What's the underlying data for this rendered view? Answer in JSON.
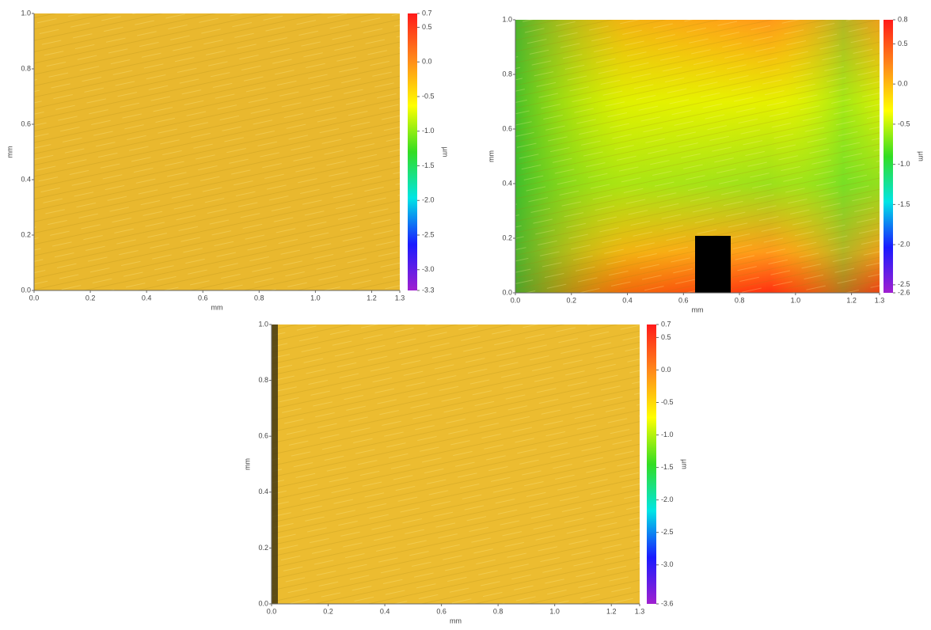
{
  "chart_data": [
    {
      "type": "surface",
      "xlabel": "mm",
      "ylabel": "mm",
      "colorbar_label": "µm",
      "xlim": [
        0,
        1.3
      ],
      "ylim": [
        0,
        1
      ],
      "xticks": [
        {
          "value": 0,
          "label": "0.0"
        },
        0.2,
        0.4,
        0.6,
        0.8,
        {
          "value": 1,
          "label": "1.0"
        },
        1.2,
        1.3
      ],
      "yticks": [
        {
          "value": 0,
          "label": "0.0"
        },
        0.2,
        0.4,
        0.6,
        0.8,
        {
          "value": 1,
          "label": "1.0"
        }
      ],
      "clim": [
        -3.3,
        0.7
      ],
      "cticks": [
        0.7,
        0.5,
        {
          "value": 0,
          "label": "0.0"
        },
        -0.5,
        {
          "value": -1,
          "label": "-1.0"
        },
        -1.5,
        {
          "value": -2,
          "label": "-2.0"
        },
        -2.5,
        {
          "value": -3,
          "label": "-3.0"
        },
        -3.3
      ],
      "colorscale": [
        "#ff1a1a",
        "#ff8a1a",
        "#ffff00",
        "#33dd22",
        "#00e5e5",
        "#1a1aff",
        "#a020d0"
      ]
    },
    {
      "type": "surface",
      "xlabel": "mm",
      "ylabel": "mm",
      "colorbar_label": "µm",
      "xlim": [
        0,
        1.3
      ],
      "ylim": [
        0,
        1
      ],
      "xticks": [
        {
          "value": 0,
          "label": "0.0"
        },
        0.2,
        0.4,
        0.6,
        0.8,
        {
          "value": 1,
          "label": "1.0"
        },
        1.2,
        1.3
      ],
      "yticks": [
        {
          "value": 0,
          "label": "0.0"
        },
        0.2,
        0.4,
        0.6,
        0.8,
        {
          "value": 1,
          "label": "1.0"
        }
      ],
      "clim": [
        -2.6,
        0.8
      ],
      "cticks": [
        0.8,
        0.5,
        {
          "value": 0,
          "label": "0.0"
        },
        -0.5,
        {
          "value": -1,
          "label": "-1.0"
        },
        -1.5,
        {
          "value": -2,
          "label": "-2.0"
        },
        -2.5,
        -2.6
      ],
      "colorscale": [
        "#ff1a1a",
        "#ff8a1a",
        "#ffff00",
        "#33dd22",
        "#00e5e5",
        "#1a1aff",
        "#a020d0"
      ]
    },
    {
      "type": "surface",
      "xlabel": "mm",
      "ylabel": "mm",
      "colorbar_label": "µm",
      "xlim": [
        0,
        1.3
      ],
      "ylim": [
        0,
        1
      ],
      "xticks": [
        {
          "value": 0,
          "label": "0.0"
        },
        0.2,
        0.4,
        0.6,
        0.8,
        {
          "value": 1,
          "label": "1.0"
        },
        1.2,
        1.3
      ],
      "yticks": [
        {
          "value": 0,
          "label": "0.0"
        },
        0.2,
        0.4,
        0.6,
        0.8,
        {
          "value": 1,
          "label": "1.0"
        }
      ],
      "clim": [
        -3.6,
        0.7
      ],
      "cticks": [
        0.7,
        0.5,
        {
          "value": 0,
          "label": "0.0"
        },
        -0.5,
        {
          "value": -1,
          "label": "-1.0"
        },
        -1.5,
        {
          "value": -2,
          "label": "-2.0"
        },
        -2.5,
        {
          "value": -3,
          "label": "-3.0"
        },
        -3.6
      ],
      "colorscale": [
        "#ff1a1a",
        "#ff8a1a",
        "#ffff00",
        "#33dd22",
        "#00e5e5",
        "#1a1aff",
        "#a020d0"
      ]
    }
  ]
}
